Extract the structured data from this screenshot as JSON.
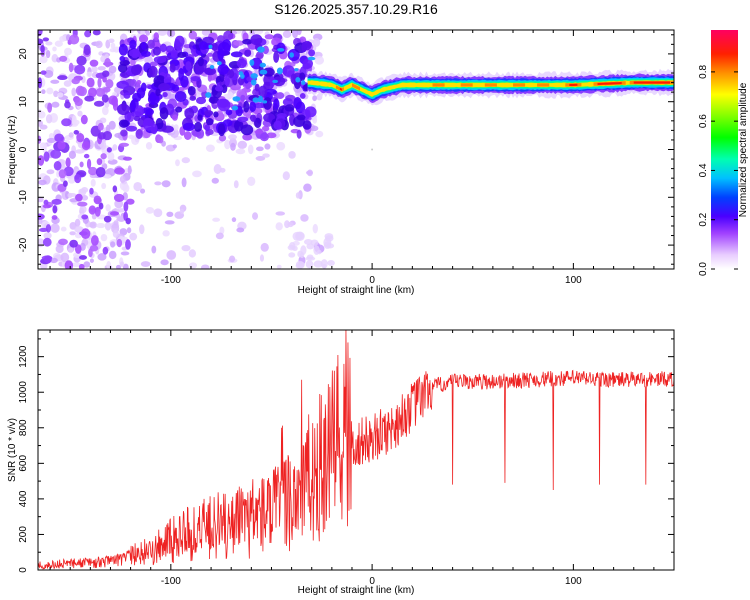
{
  "title": "S126.2025.357.10.29.R16",
  "chart_data": [
    {
      "type": "heatmap",
      "name": "spectrogram",
      "xlabel": "Height of straight line (km)",
      "ylabel": "Frequency (Hz)",
      "xlim": [
        -166,
        150
      ],
      "ylim": [
        -25,
        25
      ],
      "xticks": [
        -100,
        0,
        100
      ],
      "yticks": [
        -20,
        -10,
        0,
        10,
        20
      ],
      "colorbar": {
        "label": "Normalized spectral amplitude",
        "range": [
          0,
          0.97
        ],
        "ticks": [
          0.0,
          0.2,
          0.4,
          0.6,
          0.8
        ]
      },
      "ridge": {
        "description": "Dominant spectral line",
        "points": [
          [
            -30,
            14
          ],
          [
            -20,
            13.5
          ],
          [
            -15,
            12.5
          ],
          [
            -10,
            13.5
          ],
          [
            -5,
            12.5
          ],
          [
            0,
            11.5
          ],
          [
            5,
            12.5
          ],
          [
            15,
            13.5
          ],
          [
            40,
            13.5
          ],
          [
            100,
            13.5
          ],
          [
            130,
            14
          ],
          [
            150,
            14
          ]
        ]
      }
    },
    {
      "type": "line",
      "name": "snr",
      "xlabel": "Height of straight line (km)",
      "ylabel": "SNR (10 * v/v)",
      "xlim": [
        -166,
        150
      ],
      "ylim": [
        0,
        1350
      ],
      "xticks": [
        -100,
        0,
        100
      ],
      "yticks": [
        0,
        200,
        400,
        600,
        800,
        1000,
        1200
      ],
      "series": [
        {
          "name": "SNR",
          "color": "#ee2222",
          "trend": [
            [
              -166,
              30
            ],
            [
              -130,
              60
            ],
            [
              -110,
              130
            ],
            [
              -90,
              250
            ],
            [
              -70,
              300
            ],
            [
              -50,
              320
            ],
            [
              -40,
              420
            ],
            [
              -30,
              520
            ],
            [
              -20,
              650
            ],
            [
              -15,
              720
            ],
            [
              -10,
              700
            ],
            [
              0,
              740
            ],
            [
              10,
              800
            ],
            [
              20,
              920
            ],
            [
              30,
              1030
            ],
            [
              40,
              1060
            ],
            [
              60,
              1060
            ],
            [
              80,
              1070
            ],
            [
              100,
              1080
            ],
            [
              120,
              1070
            ],
            [
              150,
              1075
            ]
          ],
          "spikes": [
            [
              -13,
              1350
            ],
            [
              -35,
              1070
            ],
            [
              -45,
              800
            ],
            [
              -12,
              1280
            ]
          ],
          "dips": [
            [
              40,
              480
            ],
            [
              66,
              490
            ],
            [
              90,
              450
            ],
            [
              113,
              480
            ],
            [
              136,
              480
            ]
          ]
        }
      ]
    }
  ]
}
